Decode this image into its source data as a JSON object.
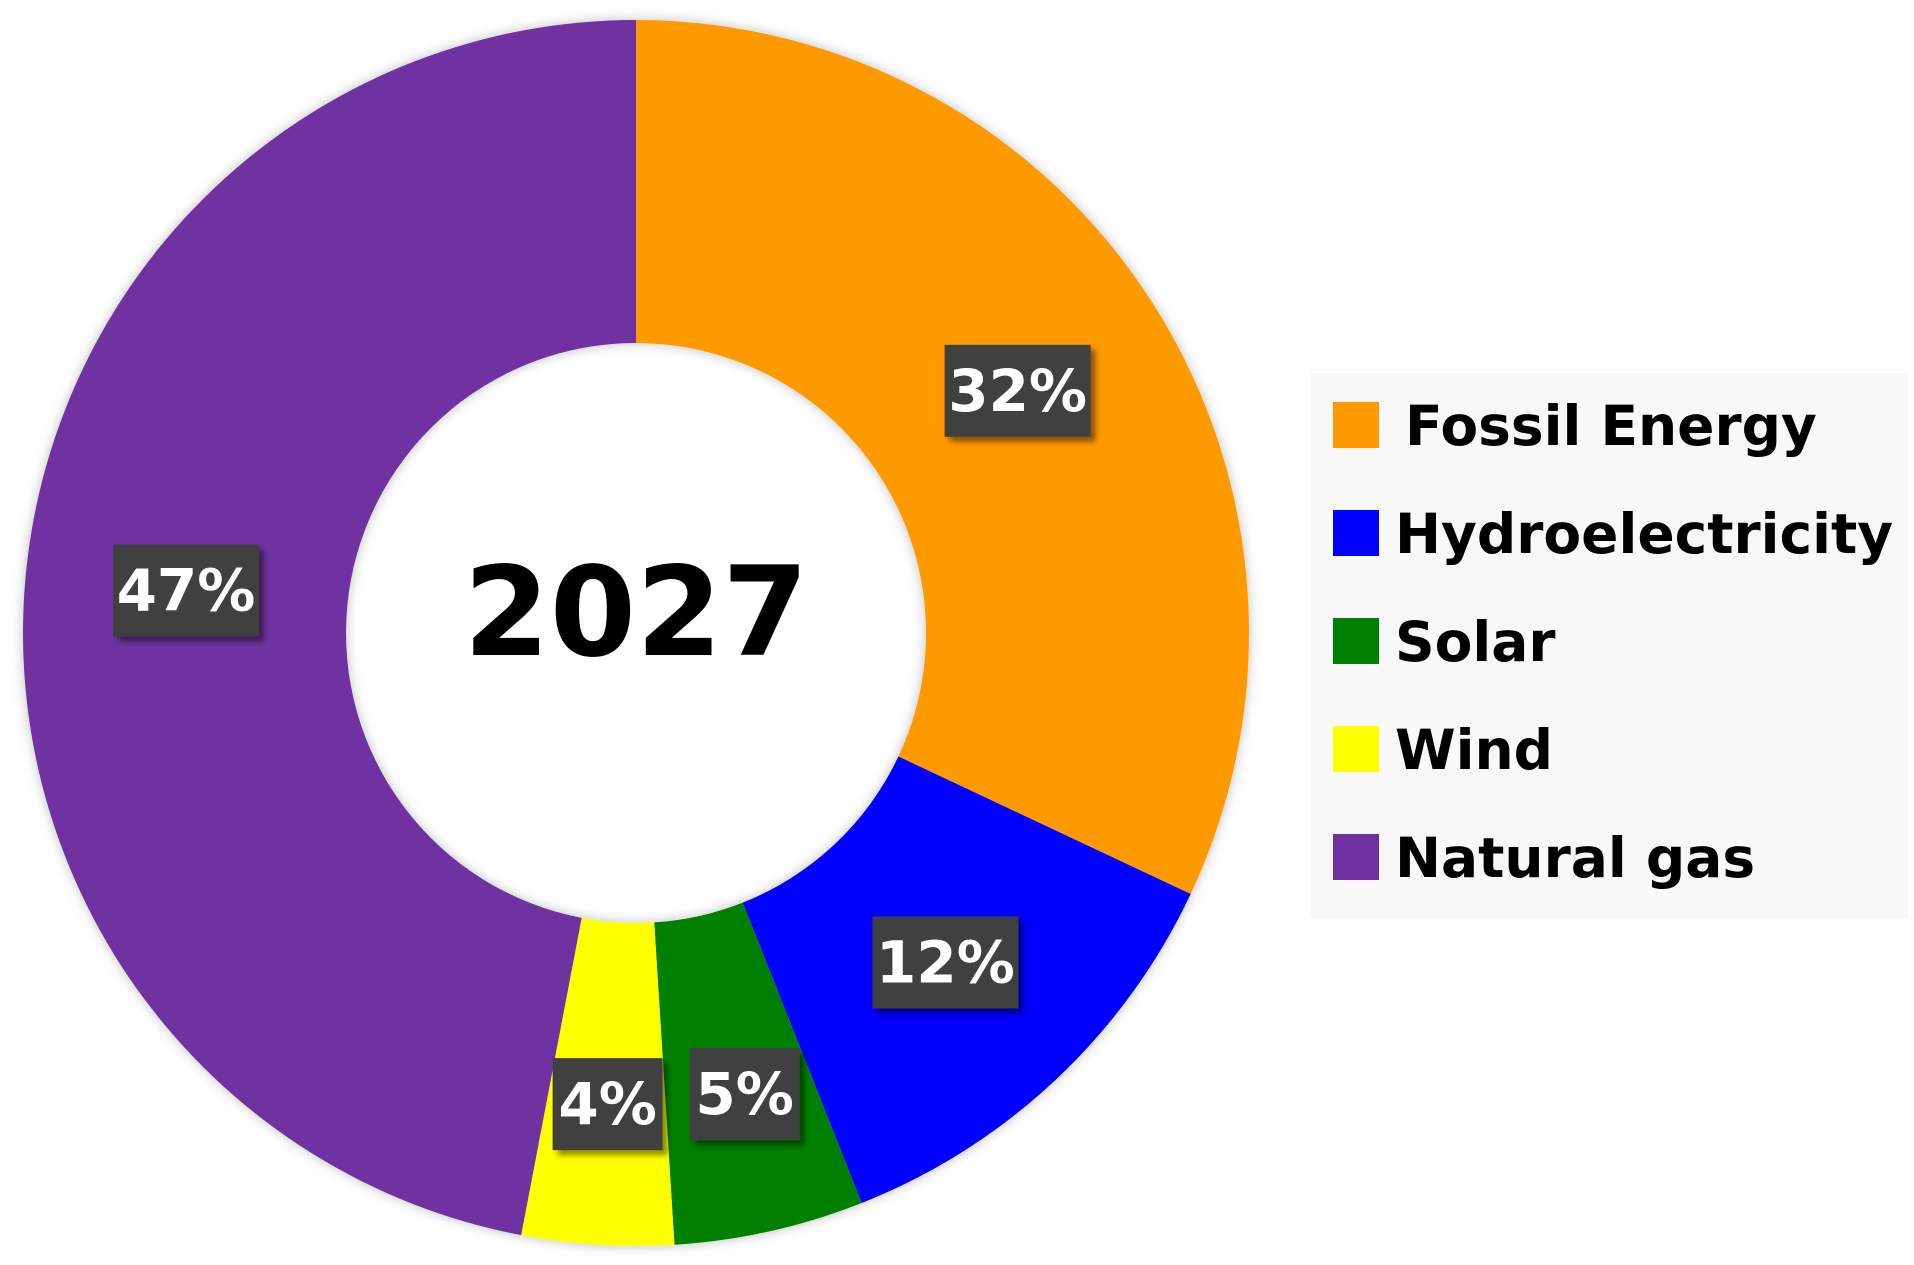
{
  "chart_data": {
    "type": "pie",
    "style": "donut",
    "center_label": "2027",
    "legend_position": "right",
    "slices": [
      {
        "label": "Fossil Energy",
        "value": 32,
        "display": "32%",
        "color": "#ff9900"
      },
      {
        "label": "Hydroelectricity",
        "value": 12,
        "display": "12%",
        "color": "#0000ff"
      },
      {
        "label": "Solar",
        "value": 5,
        "display": "5%",
        "color": "#008000"
      },
      {
        "label": "Wind",
        "value": 4,
        "display": "4%",
        "color": "#ffff00"
      },
      {
        "label": "Natural gas",
        "value": 47,
        "display": "47%",
        "color": "#7030a0"
      }
    ]
  }
}
